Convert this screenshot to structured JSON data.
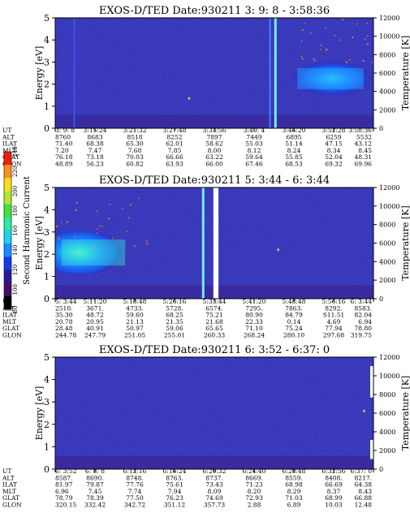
{
  "colorbar": {
    "label": "Second Harmonic Current",
    "ticks": [
      "80",
      "100",
      "120",
      "140",
      "160",
      "180",
      "200",
      "220",
      "240"
    ]
  },
  "chart_data": [
    {
      "type": "heatmap",
      "title": "EXOS-D/TED   Date:930211  3: 9: 8 - 3:58:36",
      "ylabel": "Energy [eV]",
      "y2label": "Temperature [K]",
      "ylim": [
        0,
        5
      ],
      "y2lim": [
        0,
        12000
      ],
      "yticks": [
        "0",
        "1",
        "2",
        "3",
        "4",
        "5"
      ],
      "y2ticks": [
        "0",
        "2000",
        "4000",
        "6000",
        "8000",
        "10000",
        "12000"
      ],
      "features": [
        {
          "kind": "blob",
          "x0": 0.74,
          "x1": 1.0,
          "y0": 1.45,
          "y1": 3.05,
          "level": "high"
        },
        {
          "kind": "vline",
          "x": 0.692,
          "level": "very-high"
        },
        {
          "kind": "vline",
          "x": 0.675,
          "level": "medium"
        },
        {
          "kind": "vline",
          "x": 0.06,
          "level": "low"
        },
        {
          "kind": "speck",
          "x": 0.42,
          "y": 1.35
        },
        {
          "kind": "scatter",
          "x0": 0.75,
          "x1": 1.0,
          "y0": 3.0,
          "y1": 5.0
        }
      ],
      "rows": [
        {
          "label": "UT",
          "values": [
            "3: 9: 8",
            "3:15:24",
            "3:21:32",
            "3:27:48",
            "3:33:56",
            "3:40: 4",
            "3:46:20",
            "3:52:28",
            "3:58:36"
          ]
        },
        {
          "label": "ALT",
          "values": [
            "8760",
            "8683",
            "8518",
            "8252",
            "7897",
            "7449",
            "6895",
            "6259",
            "5532"
          ]
        },
        {
          "label": "ILAT",
          "values": [
            "71.40",
            "68.38",
            "65.30",
            "62.01",
            "58.62",
            "55.03",
            "51.14",
            "47.15",
            "43.12"
          ]
        },
        {
          "label": "MLT",
          "values": [
            "7.20",
            "7.47",
            "7.68",
            "7.85",
            "8.00",
            "8.12",
            "8.24",
            "8.34",
            "8.45"
          ]
        },
        {
          "label": "GLAT",
          "values": [
            "76.18",
            "73.18",
            "70.03",
            "66.66",
            "63.22",
            "59.64",
            "55.85",
            "52.04",
            "48.31"
          ]
        },
        {
          "label": "GLON",
          "values": [
            "48.89",
            "56.23",
            "60.82",
            "63.93",
            "66.00",
            "67.46",
            "68.53",
            "69.32",
            "69.96"
          ]
        }
      ]
    },
    {
      "type": "heatmap",
      "title": "EXOS-D/TED   Date:930211  5: 3:44 - 6: 3:44",
      "ylabel": "Energy [eV]",
      "y2label": "Temperature [K]",
      "ylim": [
        0,
        5
      ],
      "y2lim": [
        0,
        12000
      ],
      "yticks": [
        "0",
        "1",
        "2",
        "3",
        "4",
        "5"
      ],
      "y2ticks": [
        "0",
        "2000",
        "4000",
        "6000",
        "8000",
        "10000",
        "12000"
      ],
      "features": [
        {
          "kind": "blob",
          "x0": 0.0,
          "x1": 0.25,
          "y0": 1.1,
          "y1": 3.05,
          "level": "high"
        },
        {
          "kind": "vline",
          "x": 0.465,
          "level": "very-high"
        },
        {
          "kind": "gap",
          "x0": 0.497,
          "x1": 0.513
        },
        {
          "kind": "speck",
          "x": 0.7,
          "y": 2.2
        },
        {
          "kind": "scatter",
          "x0": 0.0,
          "x1": 0.3,
          "y0": 2.3,
          "y1": 4.6
        }
      ],
      "rows": [
        {
          "label": "UT",
          "values": [
            "5: 3:44",
            "5:11:20",
            "5:18:48",
            "5:26:16",
            "5:33:44",
            "5:41:20",
            "5:48:48",
            "5:56:16",
            "6: 3:44"
          ]
        },
        {
          "label": "ALT",
          "values": [
            "2510.",
            "3671.",
            "4733.",
            "5728.",
            "6574.",
            "7295.",
            "7863.",
            "8292.",
            "8583."
          ]
        },
        {
          "label": "ILAT",
          "values": [
            "35.30",
            "48.72",
            "59.60",
            "68.25",
            "75.21",
            "80.90",
            "84.79",
            "S11.51",
            "82.04"
          ]
        },
        {
          "label": "MLT",
          "values": [
            "20.78",
            "20.95",
            "21.13",
            "21.35",
            "21.68",
            "22.33",
            "0.14",
            "4.69",
            "6.94"
          ]
        },
        {
          "label": "GLAT",
          "values": [
            "28.48",
            "40.91",
            "50.97",
            "59.06",
            "65.65",
            "71.10",
            "75.24",
            "77.94",
            "78.80"
          ]
        },
        {
          "label": "GLON",
          "values": [
            "244.78",
            "247.79",
            "251.05",
            "255.01",
            "260.33",
            "268.24",
            "280.10",
            "297.68",
            "319.75"
          ]
        }
      ]
    },
    {
      "type": "heatmap",
      "title": "EXOS-D/TED   Date:930211  6: 3:52 - 6:37: 0",
      "ylabel": "Energy [eV]",
      "y2label": "Temperature [K]",
      "ylim": [
        0,
        5
      ],
      "y2lim": [
        0,
        12000
      ],
      "yticks": [
        "0",
        "1",
        "2",
        "3",
        "4",
        "5"
      ],
      "y2ticks": [
        "0",
        "2000",
        "4000",
        "6000",
        "8000",
        "10000",
        "12000"
      ],
      "features": [
        {
          "kind": "speck",
          "x": 0.97,
          "y": 2.6
        },
        {
          "kind": "edge-notch",
          "y0": 3.2,
          "y1": 4.6
        },
        {
          "kind": "edge-notch",
          "y0": 0.45,
          "y1": 1.3
        }
      ],
      "rows": [
        {
          "label": "UT",
          "values": [
            "6: 3:52",
            "6: 8: 8",
            "6:12:16",
            "6:16:24",
            "6:20:32",
            "6:24:40",
            "6:28:48",
            "6:32:56",
            "6:37: 0"
          ]
        },
        {
          "label": "ALT",
          "values": [
            "8587.",
            "8690.",
            "8748.",
            "8763.",
            "8737.",
            "8669.",
            "8559.",
            "8408.",
            "8217."
          ]
        },
        {
          "label": "ILAT",
          "values": [
            "81.97",
            "79.87",
            "77.76",
            "75.61",
            "73.43",
            "71.23",
            "68.98",
            "66.69",
            "64.38"
          ]
        },
        {
          "label": "MLT",
          "values": [
            "6.96",
            "7.45",
            "7.74",
            "7.94",
            "8.09",
            "8.20",
            "8.29",
            "8.37",
            "8.43"
          ]
        },
        {
          "label": "GLAT",
          "values": [
            "78.79",
            "78.39",
            "77.50",
            "76.23",
            "74.69",
            "72.93",
            "71.03",
            "68.99",
            "66.88"
          ]
        },
        {
          "label": "GLON",
          "values": [
            "320.15",
            "332.42",
            "342.72",
            "351.12",
            "357.73",
            "2.88",
            "6.89",
            "10.03",
            "12.48"
          ]
        }
      ]
    }
  ]
}
